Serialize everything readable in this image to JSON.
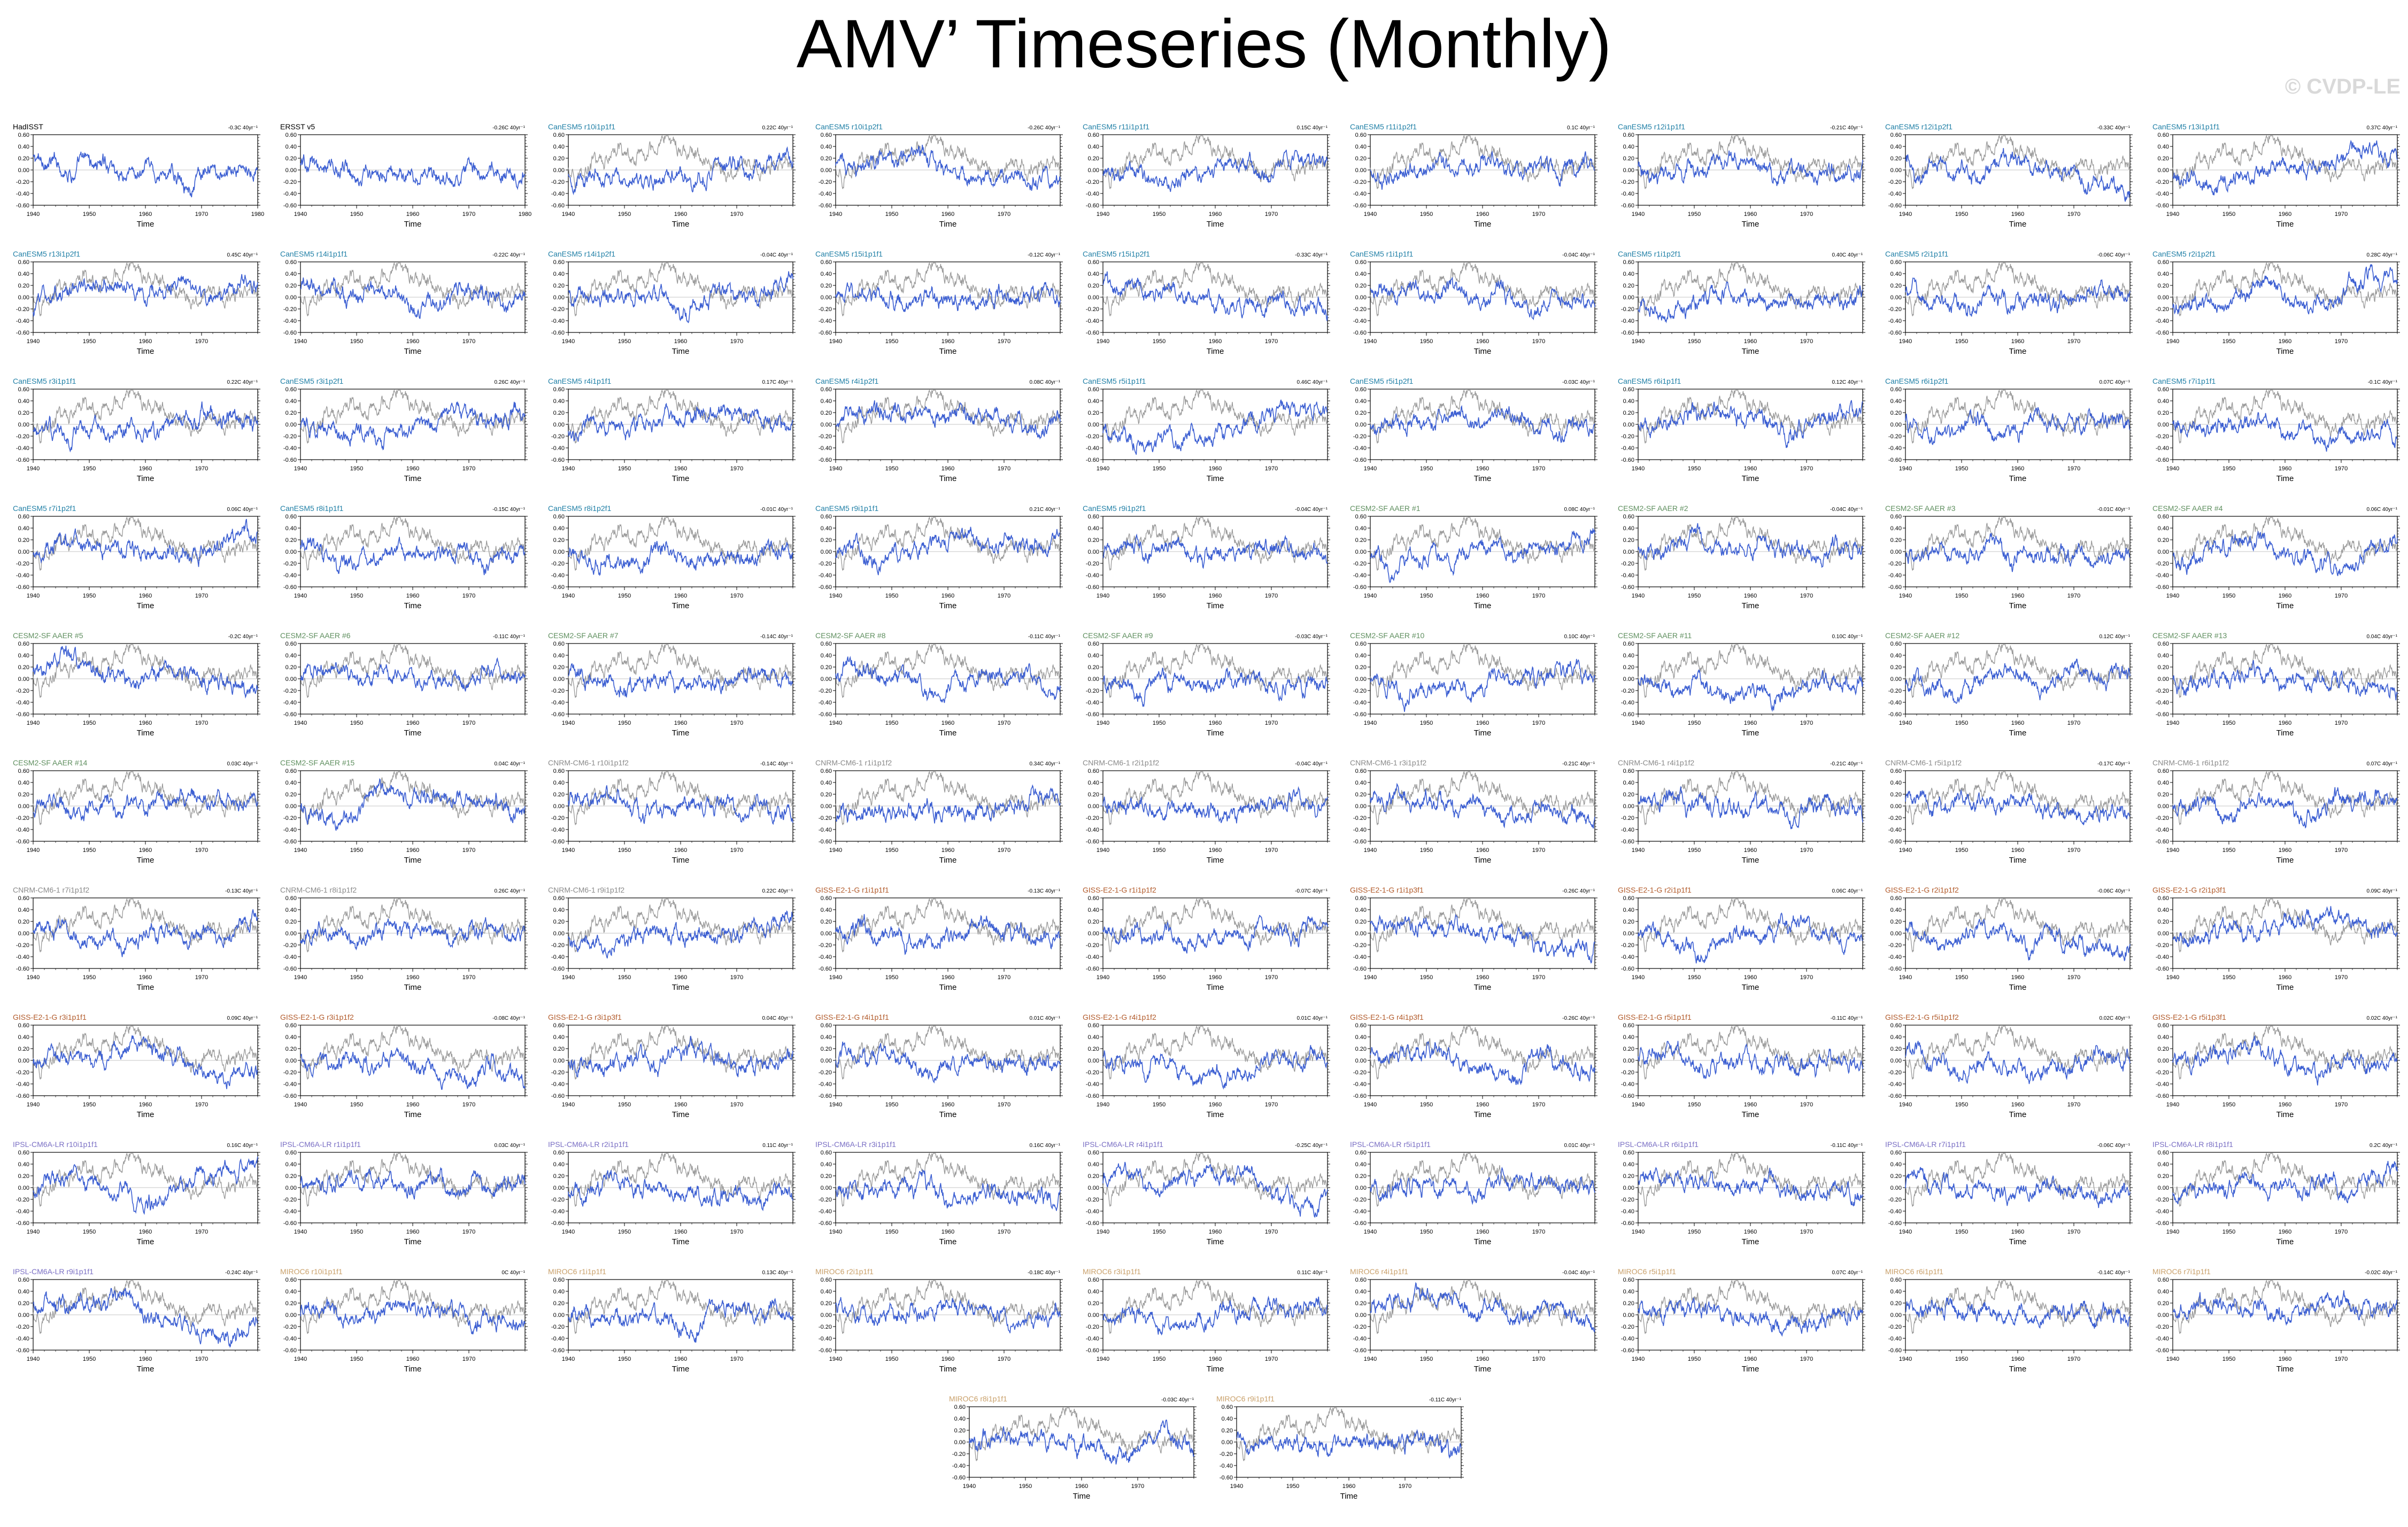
{
  "title": "AMV’ Timeseries (Monthly)",
  "watermark": "© CVDP-LE",
  "colors": {
    "model_line": "#3c5fd2",
    "obs_line": "#9a9a9a",
    "obs_label": "#000000",
    "CanESM5": "#1f7fa6",
    "CESM2": "#5f8f5f",
    "CNRM": "#8a8a8a",
    "GISS": "#b25a2a",
    "IPSL": "#7a6fc4",
    "MIROC6": "#c9a06a"
  },
  "chart_data": {
    "type": "line",
    "xlabel": "Time",
    "x_ticks": [
      "1940",
      "1950",
      "1960",
      "1970"
    ],
    "x_ticks_obs": [
      "1940",
      "1950",
      "1960",
      "1970",
      "1980"
    ],
    "xlim": [
      1940,
      1980
    ],
    "ylim": [
      -0.6,
      0.6
    ],
    "y_ticks": [
      "0.60",
      "0.40",
      "0.20",
      "0.00",
      "-0.20",
      "-0.40",
      "-0.60"
    ],
    "y_ticks_alt": [
      "0.30",
      "0.00",
      "-0.30",
      "-0.60"
    ],
    "trend_unit": "40yr⁻¹",
    "panels": [
      {
        "label": "HadISST",
        "group": "obs",
        "trend": "-0.3C"
      },
      {
        "label": "ERSST v5",
        "group": "obs",
        "trend": "-0.26C"
      },
      {
        "label": "CanESM5 r10i1p1f1",
        "group": "CanESM5",
        "trend": "0.22C"
      },
      {
        "label": "CanESM5 r10i1p2f1",
        "group": "CanESM5",
        "trend": "-0.26C"
      },
      {
        "label": "CanESM5 r11i1p1f1",
        "group": "CanESM5",
        "trend": "0.15C"
      },
      {
        "label": "CanESM5 r11i1p2f1",
        "group": "CanESM5",
        "trend": "0.1C"
      },
      {
        "label": "CanESM5 r12i1p1f1",
        "group": "CanESM5",
        "trend": "-0.21C"
      },
      {
        "label": "CanESM5 r12i1p2f1",
        "group": "CanESM5",
        "trend": "-0.33C"
      },
      {
        "label": "CanESM5 r13i1p1f1",
        "group": "CanESM5",
        "trend": "0.37C"
      },
      {
        "label": "CanESM5 r13i1p2f1",
        "group": "CanESM5",
        "trend": "0.45C"
      },
      {
        "label": "CanESM5 r14i1p1f1",
        "group": "CanESM5",
        "trend": "-0.22C"
      },
      {
        "label": "CanESM5 r14i1p2f1",
        "group": "CanESM5",
        "trend": "-0.04C"
      },
      {
        "label": "CanESM5 r15i1p1f1",
        "group": "CanESM5",
        "trend": "-0.12C"
      },
      {
        "label": "CanESM5 r15i1p2f1",
        "group": "CanESM5",
        "trend": "-0.33C"
      },
      {
        "label": "CanESM5 r1i1p1f1",
        "group": "CanESM5",
        "trend": "-0.04C"
      },
      {
        "label": "CanESM5 r1i1p2f1",
        "group": "CanESM5",
        "trend": "0.40C"
      },
      {
        "label": "CanESM5 r2i1p1f1",
        "group": "CanESM5",
        "trend": "-0.06C"
      },
      {
        "label": "CanESM5 r2i1p2f1",
        "group": "CanESM5",
        "trend": "0.28C"
      },
      {
        "label": "CanESM5 r3i1p1f1",
        "group": "CanESM5",
        "trend": "0.22C"
      },
      {
        "label": "CanESM5 r3i1p2f1",
        "group": "CanESM5",
        "trend": "0.26C"
      },
      {
        "label": "CanESM5 r4i1p1f1",
        "group": "CanESM5",
        "trend": "0.17C"
      },
      {
        "label": "CanESM5 r4i1p2f1",
        "group": "CanESM5",
        "trend": "0.08C"
      },
      {
        "label": "CanESM5 r5i1p1f1",
        "group": "CanESM5",
        "trend": "0.46C"
      },
      {
        "label": "CanESM5 r5i1p2f1",
        "group": "CanESM5",
        "trend": "-0.03C"
      },
      {
        "label": "CanESM5 r6i1p1f1",
        "group": "CanESM5",
        "trend": "0.12C"
      },
      {
        "label": "CanESM5 r6i1p2f1",
        "group": "CanESM5",
        "trend": "0.07C"
      },
      {
        "label": "CanESM5 r7i1p1f1",
        "group": "CanESM5",
        "trend": "-0.1C"
      },
      {
        "label": "CanESM5 r7i1p2f1",
        "group": "CanESM5",
        "trend": "0.06C"
      },
      {
        "label": "CanESM5 r8i1p1f1",
        "group": "CanESM5",
        "trend": "-0.15C"
      },
      {
        "label": "CanESM5 r8i1p2f1",
        "group": "CanESM5",
        "trend": "-0.01C"
      },
      {
        "label": "CanESM5 r9i1p1f1",
        "group": "CanESM5",
        "trend": "0.21C"
      },
      {
        "label": "CanESM5 r9i1p2f1",
        "group": "CanESM5",
        "trend": "-0.04C"
      },
      {
        "label": "CESM2-SF AAER #1",
        "group": "CESM2",
        "trend": "0.08C"
      },
      {
        "label": "CESM2-SF AAER #2",
        "group": "CESM2",
        "trend": "-0.04C"
      },
      {
        "label": "CESM2-SF AAER #3",
        "group": "CESM2",
        "trend": "-0.01C"
      },
      {
        "label": "CESM2-SF AAER #4",
        "group": "CESM2",
        "trend": "0.06C"
      },
      {
        "label": "CESM2-SF AAER #5",
        "group": "CESM2",
        "trend": "-0.2C"
      },
      {
        "label": "CESM2-SF AAER #6",
        "group": "CESM2",
        "trend": "-0.11C"
      },
      {
        "label": "CESM2-SF AAER #7",
        "group": "CESM2",
        "trend": "-0.14C"
      },
      {
        "label": "CESM2-SF AAER #8",
        "group": "CESM2",
        "trend": "-0.11C"
      },
      {
        "label": "CESM2-SF AAER #9",
        "group": "CESM2",
        "trend": "-0.03C"
      },
      {
        "label": "CESM2-SF AAER #10",
        "group": "CESM2",
        "trend": "0.10C"
      },
      {
        "label": "CESM2-SF AAER #11",
        "group": "CESM2",
        "trend": "0.10C"
      },
      {
        "label": "CESM2-SF AAER #12",
        "group": "CESM2",
        "trend": "0.12C"
      },
      {
        "label": "CESM2-SF AAER #13",
        "group": "CESM2",
        "trend": "0.04C"
      },
      {
        "label": "CESM2-SF AAER #14",
        "group": "CESM2",
        "trend": "0.03C"
      },
      {
        "label": "CESM2-SF AAER #15",
        "group": "CESM2",
        "trend": "0.04C"
      },
      {
        "label": "CNRM-CM6-1 r10i1p1f2",
        "group": "CNRM",
        "trend": "-0.14C"
      },
      {
        "label": "CNRM-CM6-1 r1i1p1f2",
        "group": "CNRM",
        "trend": "0.34C"
      },
      {
        "label": "CNRM-CM6-1 r2i1p1f2",
        "group": "CNRM",
        "trend": "-0.04C"
      },
      {
        "label": "CNRM-CM6-1 r3i1p1f2",
        "group": "CNRM",
        "trend": "-0.21C"
      },
      {
        "label": "CNRM-CM6-1 r4i1p1f2",
        "group": "CNRM",
        "trend": "-0.21C"
      },
      {
        "label": "CNRM-CM6-1 r5i1p1f2",
        "group": "CNRM",
        "trend": "-0.17C"
      },
      {
        "label": "CNRM-CM6-1 r6i1p1f2",
        "group": "CNRM",
        "trend": "0.07C"
      },
      {
        "label": "CNRM-CM6-1 r7i1p1f2",
        "group": "CNRM",
        "trend": "-0.13C"
      },
      {
        "label": "CNRM-CM6-1 r8i1p1f2",
        "group": "CNRM",
        "trend": "0.26C"
      },
      {
        "label": "CNRM-CM6-1 r9i1p1f2",
        "group": "CNRM",
        "trend": "0.22C"
      },
      {
        "label": "GISS-E2-1-G r1i1p1f1",
        "group": "GISS",
        "trend": "-0.13C"
      },
      {
        "label": "GISS-E2-1-G r1i1p1f2",
        "group": "GISS",
        "trend": "-0.07C"
      },
      {
        "label": "GISS-E2-1-G r1i1p3f1",
        "group": "GISS",
        "trend": "-0.26C"
      },
      {
        "label": "GISS-E2-1-G r2i1p1f1",
        "group": "GISS",
        "trend": "0.06C"
      },
      {
        "label": "GISS-E2-1-G r2i1p1f2",
        "group": "GISS",
        "trend": "-0.06C"
      },
      {
        "label": "GISS-E2-1-G r2i1p3f1",
        "group": "GISS",
        "trend": "0.09C"
      },
      {
        "label": "GISS-E2-1-G r3i1p1f1",
        "group": "GISS",
        "trend": "0.09C"
      },
      {
        "label": "GISS-E2-1-G r3i1p1f2",
        "group": "GISS",
        "trend": "-0.08C"
      },
      {
        "label": "GISS-E2-1-G r3i1p3f1",
        "group": "GISS",
        "trend": "0.04C"
      },
      {
        "label": "GISS-E2-1-G r4i1p1f1",
        "group": "GISS",
        "trend": "0.01C"
      },
      {
        "label": "GISS-E2-1-G r4i1p1f2",
        "group": "GISS",
        "trend": "0.01C"
      },
      {
        "label": "GISS-E2-1-G r4i1p3f1",
        "group": "GISS",
        "trend": "-0.26C"
      },
      {
        "label": "GISS-E2-1-G r5i1p1f1",
        "group": "GISS",
        "trend": "-0.11C"
      },
      {
        "label": "GISS-E2-1-G r5i1p1f2",
        "group": "GISS",
        "trend": "0.02C"
      },
      {
        "label": "GISS-E2-1-G r5i1p3f1",
        "group": "GISS",
        "trend": "0.02C"
      },
      {
        "label": "IPSL-CM6A-LR r10i1p1f1",
        "group": "IPSL",
        "trend": "0.16C"
      },
      {
        "label": "IPSL-CM6A-LR r1i1p1f1",
        "group": "IPSL",
        "trend": "0.03C"
      },
      {
        "label": "IPSL-CM6A-LR r2i1p1f1",
        "group": "IPSL",
        "trend": "0.11C"
      },
      {
        "label": "IPSL-CM6A-LR r3i1p1f1",
        "group": "IPSL",
        "trend": "0.16C"
      },
      {
        "label": "IPSL-CM6A-LR r4i1p1f1",
        "group": "IPSL",
        "trend": "-0.25C"
      },
      {
        "label": "IPSL-CM6A-LR r5i1p1f1",
        "group": "IPSL",
        "trend": "0.01C"
      },
      {
        "label": "IPSL-CM6A-LR r6i1p1f1",
        "group": "IPSL",
        "trend": "-0.11C"
      },
      {
        "label": "IPSL-CM6A-LR r7i1p1f1",
        "group": "IPSL",
        "trend": "-0.06C"
      },
      {
        "label": "IPSL-CM6A-LR r8i1p1f1",
        "group": "IPSL",
        "trend": "0.2C"
      },
      {
        "label": "IPSL-CM6A-LR r9i1p1f1",
        "group": "IPSL",
        "trend": "-0.24C"
      },
      {
        "label": "MIROC6 r10i1p1f1",
        "group": "MIROC6",
        "trend": "0C"
      },
      {
        "label": "MIROC6 r1i1p1f1",
        "group": "MIROC6",
        "trend": "0.13C"
      },
      {
        "label": "MIROC6 r2i1p1f1",
        "group": "MIROC6",
        "trend": "-0.18C"
      },
      {
        "label": "MIROC6 r3i1p1f1",
        "group": "MIROC6",
        "trend": "0.11C"
      },
      {
        "label": "MIROC6 r4i1p1f1",
        "group": "MIROC6",
        "trend": "-0.04C"
      },
      {
        "label": "MIROC6 r5i1p1f1",
        "group": "MIROC6",
        "trend": "0.07C"
      },
      {
        "label": "MIROC6 r6i1p1f1",
        "group": "MIROC6",
        "trend": "-0.14C"
      },
      {
        "label": "MIROC6 r7i1p1f1",
        "group": "MIROC6",
        "trend": "-0.02C"
      },
      {
        "label": "MIROC6 r8i1p1f1",
        "group": "MIROC6",
        "trend": "-0.03C"
      },
      {
        "label": "MIROC6 r9i1p1f1",
        "group": "MIROC6",
        "trend": "-0.11C"
      }
    ]
  }
}
